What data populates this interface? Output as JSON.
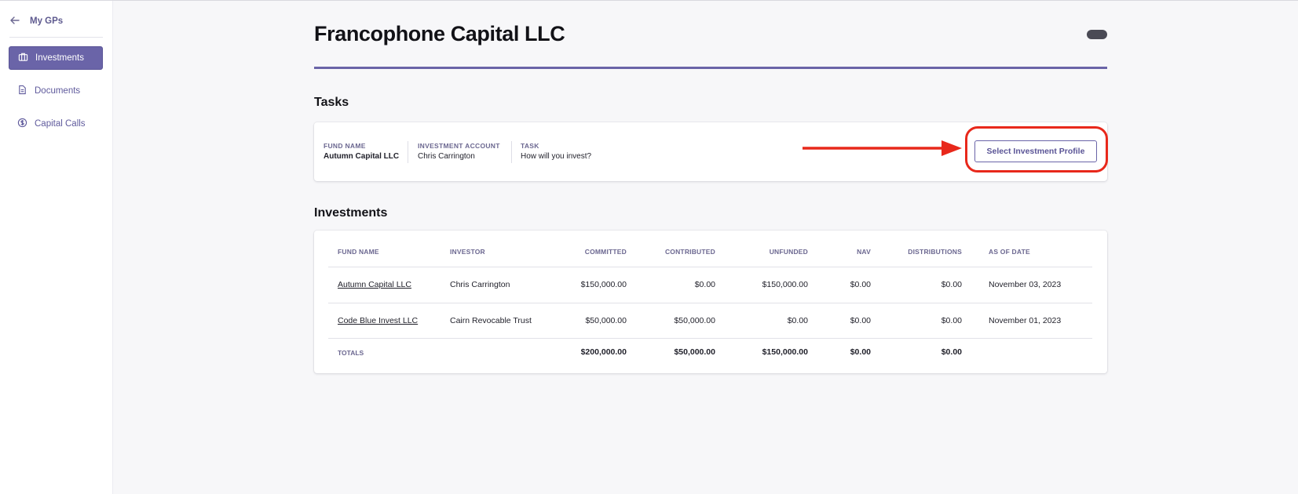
{
  "sidebar": {
    "back_label": "My GPs",
    "items": [
      {
        "label": "Investments",
        "icon": "briefcase-icon",
        "active": true
      },
      {
        "label": "Documents",
        "icon": "document-icon",
        "active": false
      },
      {
        "label": "Capital Calls",
        "icon": "dollar-circle-icon",
        "active": false
      }
    ]
  },
  "page": {
    "title": "Francophone Capital LLC"
  },
  "tasks": {
    "section_title": "Tasks",
    "item": {
      "fund_name_label": "FUND NAME",
      "fund_name": "Autumn Capital LLC",
      "account_label": "INVESTMENT ACCOUNT",
      "account": "Chris Carrington",
      "task_label": "TASK",
      "task": "How will you invest?",
      "action_label": "Select Investment Profile"
    }
  },
  "investments": {
    "section_title": "Investments",
    "columns": [
      "FUND NAME",
      "INVESTOR",
      "COMMITTED",
      "CONTRIBUTED",
      "UNFUNDED",
      "NAV",
      "DISTRIBUTIONS",
      "AS OF DATE"
    ],
    "rows": [
      [
        "Autumn Capital LLC",
        "Chris Carrington",
        "$150,000.00",
        "$0.00",
        "$150,000.00",
        "$0.00",
        "$0.00",
        "November 03, 2023"
      ],
      [
        "Code Blue Invest LLC",
        "Cairn Revocable Trust",
        "$50,000.00",
        "$50,000.00",
        "$0.00",
        "$0.00",
        "$0.00",
        "November 01, 2023"
      ]
    ],
    "totals": {
      "label": "TOTALS",
      "values": [
        "$200,000.00",
        "$50,000.00",
        "$150,000.00",
        "$0.00",
        "$0.00"
      ]
    }
  },
  "colors": {
    "accent": "#6a64a8",
    "annotation": "#e8281b"
  }
}
